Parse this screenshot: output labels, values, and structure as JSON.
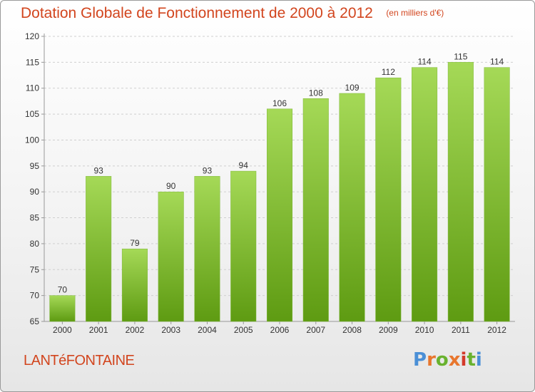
{
  "header": {
    "title": "Dotation Globale de Fonctionnement de 2000 à 2012",
    "subtitle": "(en milliers d'€)"
  },
  "footer": {
    "place": "LANTéFONTAINE",
    "logo_text": "Proxiti"
  },
  "colors": {
    "title": "#d2451e",
    "bar_light": "#a5d957",
    "bar_dark": "#5e9b12",
    "grid": "#cfcfcf",
    "axis": "#999999",
    "logo_letters": [
      "#4a8fd6",
      "#e8762d",
      "#69b22f",
      "#e8762d",
      "#d33a2a",
      "#69b22f",
      "#4a8fd6"
    ]
  },
  "chart_data": {
    "type": "bar",
    "categories": [
      "2000",
      "2001",
      "2002",
      "2003",
      "2004",
      "2005",
      "2006",
      "2007",
      "2008",
      "2009",
      "2010",
      "2011",
      "2012"
    ],
    "values": [
      70,
      93,
      79,
      90,
      93,
      94,
      106,
      108,
      109,
      112,
      114,
      115,
      114
    ],
    "data_labels": [
      "70",
      "93",
      "79",
      "90",
      "93",
      "94",
      "106",
      "108",
      "109",
      "112",
      "114",
      "115",
      "114"
    ],
    "yticks": [
      65,
      70,
      75,
      80,
      85,
      90,
      95,
      100,
      105,
      110,
      115,
      120
    ],
    "ytick_labels": [
      "65",
      "70",
      "75",
      "80",
      "85",
      "90",
      "95",
      "100",
      "105",
      "110",
      "115",
      "120"
    ],
    "ylim": [
      65,
      120
    ],
    "grid": true,
    "legend": "none"
  }
}
